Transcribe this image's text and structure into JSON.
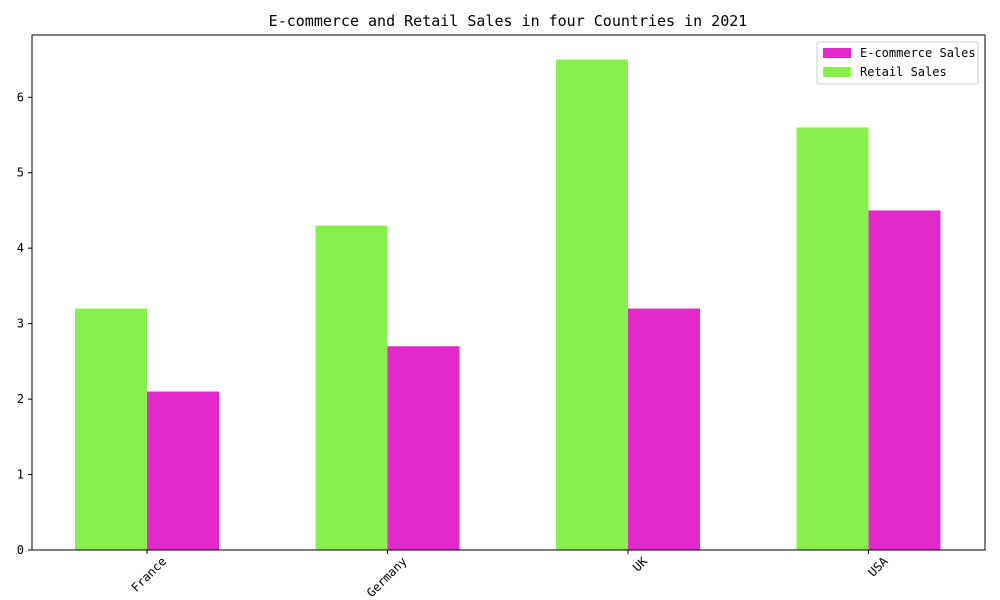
{
  "chart_data": {
    "type": "bar",
    "title": "E-commerce and Retail Sales in four Countries in 2021",
    "categories": [
      "France",
      "Germany",
      "UK",
      "USA"
    ],
    "series": [
      {
        "name": "Retail Sales",
        "color": "#88f04d",
        "values": [
          3.2,
          4.3,
          6.5,
          5.6
        ]
      },
      {
        "name": "E-commerce Sales",
        "color": "#e229cc",
        "values": [
          2.1,
          2.7,
          3.2,
          4.5
        ]
      }
    ],
    "legend_order": [
      "E-commerce Sales",
      "Retail Sales"
    ],
    "yticks": [
      0,
      1,
      2,
      3,
      4,
      5,
      6
    ],
    "ylim": [
      0,
      6.825
    ],
    "xlabel": "",
    "ylabel": "",
    "grid": false,
    "legend_position": "top-right"
  }
}
